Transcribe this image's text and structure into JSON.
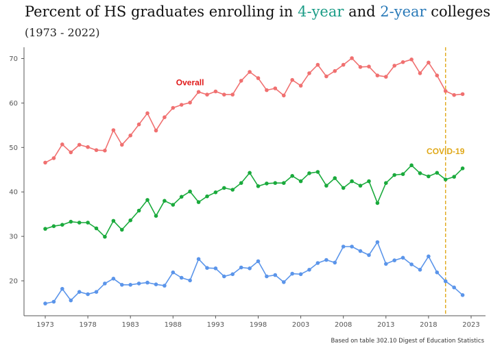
{
  "title": {
    "prefix": "Percent of HS graduates enrolling in ",
    "four_year": "4-year",
    "middle": " and ",
    "two_year": "2-year",
    "suffix": " colleges"
  },
  "subtitle": "(1973 - 2022)",
  "source": "Based on table 302.10 Digest of Education Statistics",
  "colors": {
    "overall": "#f07070",
    "four_year": "#1aaa3c",
    "two_year": "#5b95ea",
    "covid": "#e0a818",
    "four_year_title": "#1a9c86",
    "two_year_title": "#2a7ab8",
    "axis": "#555555"
  },
  "chart_data": {
    "type": "line",
    "x": [
      1973,
      1974,
      1975,
      1976,
      1977,
      1978,
      1979,
      1980,
      1981,
      1982,
      1983,
      1984,
      1985,
      1986,
      1987,
      1988,
      1989,
      1990,
      1991,
      1992,
      1993,
      1994,
      1995,
      1996,
      1997,
      1998,
      1999,
      2000,
      2001,
      2002,
      2003,
      2004,
      2005,
      2006,
      2007,
      2008,
      2009,
      2010,
      2011,
      2012,
      2013,
      2014,
      2015,
      2016,
      2017,
      2018,
      2019,
      2020,
      2021,
      2022
    ],
    "series": [
      {
        "key": "overall",
        "values": [
          46.6,
          47.6,
          50.7,
          48.9,
          50.6,
          50.1,
          49.4,
          49.3,
          53.9,
          50.6,
          52.7,
          55.2,
          57.7,
          53.8,
          56.8,
          58.9,
          59.6,
          60.1,
          62.5,
          61.9,
          62.6,
          61.9,
          61.9,
          65.0,
          67.0,
          65.6,
          62.9,
          63.3,
          61.7,
          65.2,
          63.9,
          66.7,
          68.6,
          66.0,
          67.2,
          68.6,
          70.1,
          68.1,
          68.2,
          66.2,
          65.9,
          68.4,
          69.2,
          69.8,
          66.7,
          69.1,
          66.2,
          62.7,
          61.8,
          62.0
        ]
      },
      {
        "key": "four_year",
        "values": [
          31.7,
          32.3,
          32.6,
          33.3,
          33.1,
          33.1,
          31.8,
          29.9,
          33.5,
          31.5,
          33.6,
          35.8,
          38.2,
          34.6,
          38.0,
          37.1,
          38.9,
          40.1,
          37.7,
          39.0,
          39.9,
          40.9,
          40.5,
          42.0,
          44.3,
          41.3,
          41.9,
          42.0,
          42.0,
          43.6,
          42.4,
          44.2,
          44.5,
          41.4,
          43.1,
          40.9,
          42.4,
          41.4,
          42.4,
          37.5,
          42.0,
          43.8,
          44.0,
          46.0,
          44.2,
          43.5,
          44.3,
          42.8,
          43.4,
          45.3
        ]
      },
      {
        "key": "two_year",
        "values": [
          14.9,
          15.3,
          18.2,
          15.6,
          17.5,
          17.0,
          17.5,
          19.4,
          20.5,
          19.1,
          19.1,
          19.4,
          19.6,
          19.2,
          18.9,
          21.9,
          20.7,
          20.1,
          24.9,
          22.9,
          22.8,
          21.0,
          21.5,
          23.0,
          22.8,
          24.4,
          21.0,
          21.3,
          19.7,
          21.6,
          21.5,
          22.5,
          24.0,
          24.7,
          24.1,
          27.7,
          27.7,
          26.7,
          25.8,
          28.7,
          23.8,
          24.6,
          25.2,
          23.7,
          22.5,
          25.5,
          21.9,
          19.9,
          18.5,
          16.8
        ]
      }
    ],
    "xlim": [
      1973,
      2023
    ],
    "ylim": [
      15,
      70
    ],
    "xticks": [
      "1973",
      "1978",
      "1983",
      "1988",
      "1993",
      "1998",
      "2003",
      "2008",
      "2013",
      "2018",
      "2023"
    ],
    "yticks": [
      "20",
      "30",
      "40",
      "50",
      "60",
      "70"
    ],
    "annotations": [
      {
        "label": "Overall",
        "x": 1990,
        "y": 64
      },
      {
        "label": "COVID-19",
        "x": 2020,
        "y": 48.5
      }
    ],
    "covid_line_x": 2020,
    "grid": false,
    "legend": "none"
  }
}
